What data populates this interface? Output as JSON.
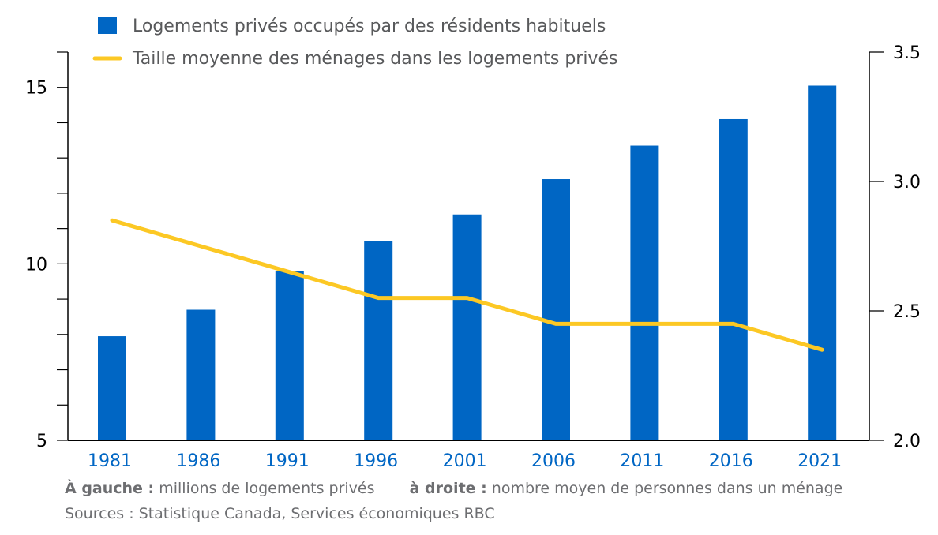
{
  "chart_data": {
    "type": "bar",
    "categories": [
      "1981",
      "1986",
      "1991",
      "1996",
      "2001",
      "2006",
      "2011",
      "2016",
      "2021"
    ],
    "series": [
      {
        "name": "Logements privés occupés par des résidents habituels",
        "type": "bar",
        "axis": "left",
        "values": [
          7.95,
          8.7,
          9.8,
          10.65,
          11.4,
          12.4,
          13.35,
          14.1,
          15.05
        ],
        "color": "#0066c4"
      },
      {
        "name": "Taille moyenne des ménages dans les logements privés",
        "type": "line",
        "axis": "right",
        "values": [
          2.85,
          2.75,
          2.65,
          2.55,
          2.55,
          2.45,
          2.45,
          2.45,
          2.35
        ],
        "color": "#fcc824"
      }
    ],
    "y_left": {
      "ylim": [
        5,
        16
      ],
      "ticks": [
        5,
        10,
        15
      ]
    },
    "y_right": {
      "ylim": [
        2.0,
        3.5
      ],
      "ticks": [
        "2.0",
        "2.5",
        "3.0",
        "3.5"
      ]
    },
    "legend_position": "top",
    "grid": false,
    "colors": {
      "tick_x": "#0066c4",
      "axis": "#000000",
      "note": "#6d6e71"
    }
  },
  "notes": {
    "left_label": "À gauche :",
    "left_text": "millions de logements privés",
    "right_label": "à droite :",
    "right_text": "nombre moyen de personnes dans un ménage",
    "sources": "Sources : Statistique Canada, Services économiques RBC"
  }
}
